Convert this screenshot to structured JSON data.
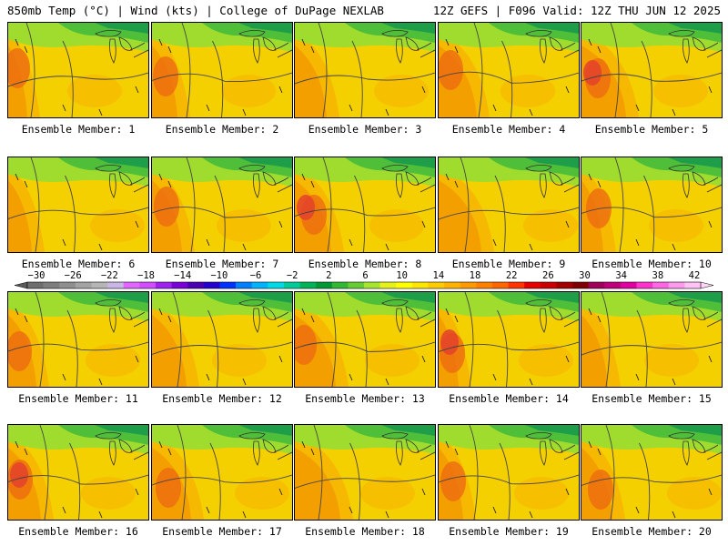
{
  "header": {
    "left": "850mb Temp (°C) | Wind (kts) | College of DuPage NEXLAB",
    "right": "12Z GEFS | F096 Valid: 12Z THU JUN 12 2025"
  },
  "colorbar": {
    "labels": [
      "−30",
      "−26",
      "−22",
      "−18",
      "−14",
      "−10",
      "−6",
      "−2",
      "2",
      "6",
      "10",
      "14",
      "18",
      "22",
      "26",
      "30",
      "34",
      "38",
      "42"
    ],
    "colors": [
      "#6e6e6e",
      "#7d7d7d",
      "#8f8f8f",
      "#a3a3a3",
      "#b5b5b5",
      "#c9b5e6",
      "#e066ff",
      "#d24dff",
      "#a020f0",
      "#7a00d9",
      "#4b00b3",
      "#2600cc",
      "#0033ff",
      "#0080ff",
      "#00b3ff",
      "#00d9e6",
      "#00cc99",
      "#00b359",
      "#009933",
      "#33b833",
      "#66cc33",
      "#a6e62e",
      "#e6f01a",
      "#ffff00",
      "#ffe600",
      "#ffcc00",
      "#ffb300",
      "#ff9900",
      "#ff8000",
      "#ff6600",
      "#ff3300",
      "#e60000",
      "#cc0000",
      "#a30000",
      "#800000",
      "#a0005a",
      "#c0007a",
      "#e000a0",
      "#ff33cc",
      "#ff66e6",
      "#ff99ee",
      "#ffc2f5"
    ]
  },
  "panels": [
    {
      "label": "Ensemble Member: 1"
    },
    {
      "label": "Ensemble Member: 2"
    },
    {
      "label": "Ensemble Member: 3"
    },
    {
      "label": "Ensemble Member: 4"
    },
    {
      "label": "Ensemble Member: 5"
    },
    {
      "label": "Ensemble Member: 6"
    },
    {
      "label": "Ensemble Member: 7"
    },
    {
      "label": "Ensemble Member: 8"
    },
    {
      "label": "Ensemble Member: 9"
    },
    {
      "label": "Ensemble Member: 10"
    },
    {
      "label": "Ensemble Member: 11"
    },
    {
      "label": "Ensemble Member: 12"
    },
    {
      "label": "Ensemble Member: 13"
    },
    {
      "label": "Ensemble Member: 14"
    },
    {
      "label": "Ensemble Member: 15"
    },
    {
      "label": "Ensemble Member: 16"
    },
    {
      "label": "Ensemble Member: 17"
    },
    {
      "label": "Ensemble Member: 18"
    },
    {
      "label": "Ensemble Member: 19"
    },
    {
      "label": "Ensemble Member: 20"
    }
  ],
  "map_colors": {
    "green_dark": "#1f9e4a",
    "green": "#4fbf3a",
    "green_light": "#9fdc2e",
    "yellow": "#f5d000",
    "yellow_orange": "#f6b800",
    "orange": "#f39a00",
    "orange_dark": "#ee6a10",
    "red": "#e3422a"
  }
}
